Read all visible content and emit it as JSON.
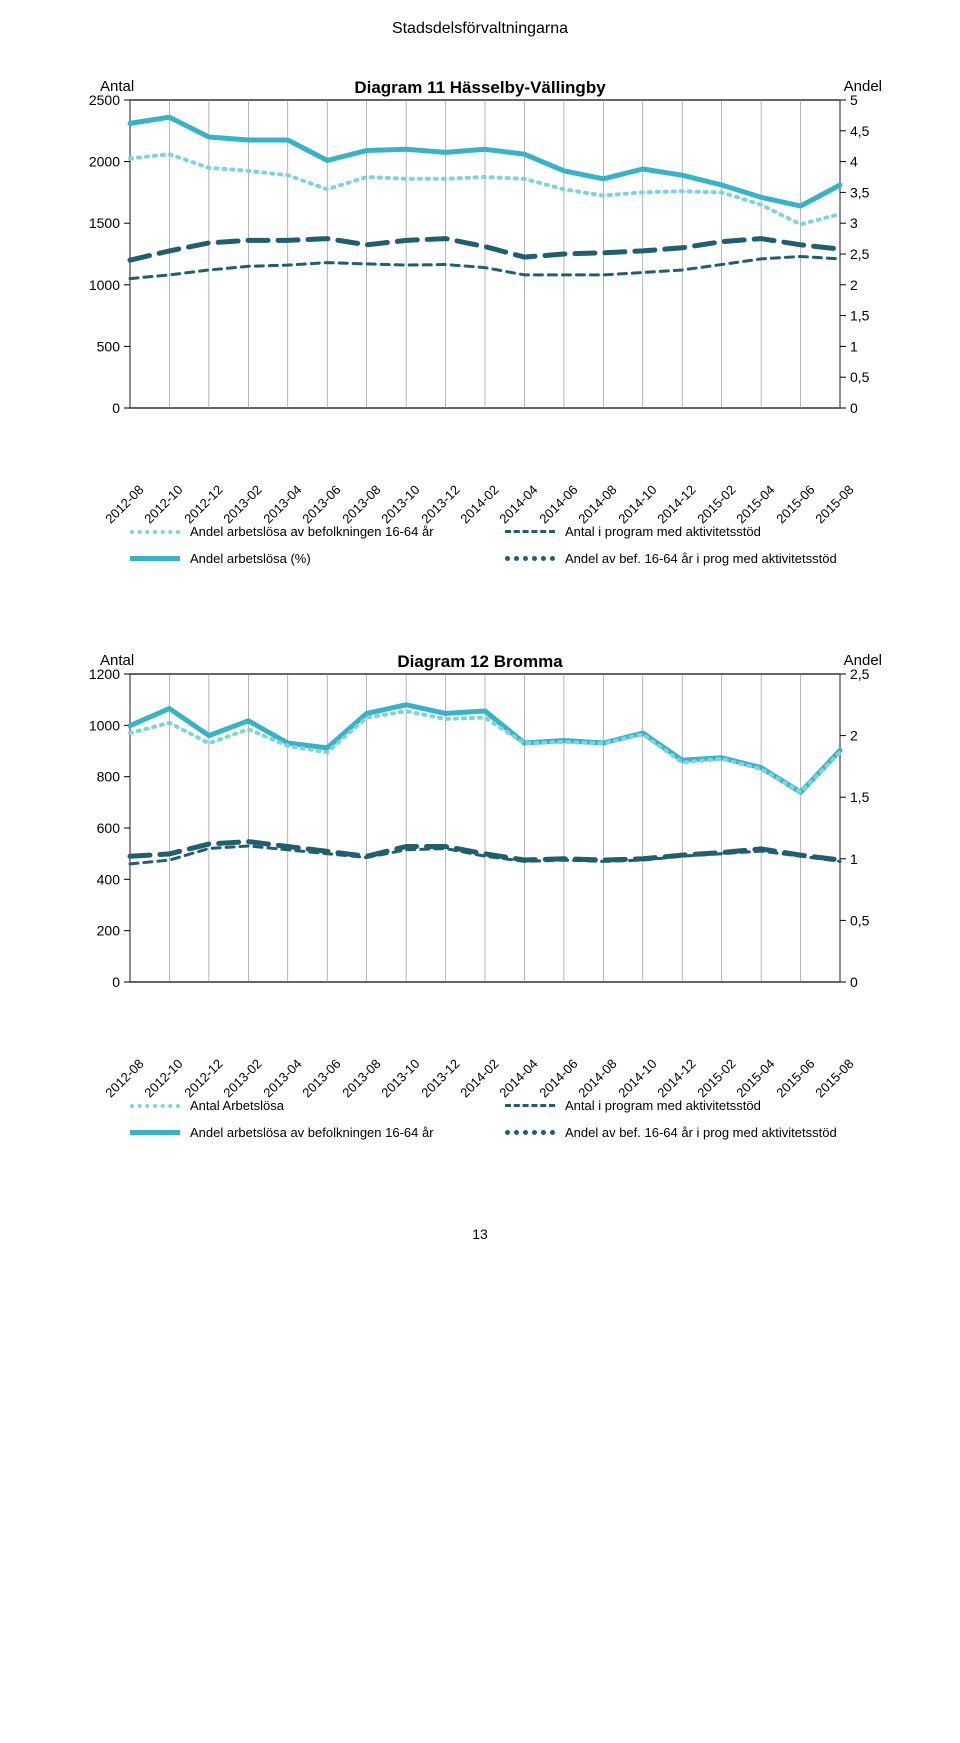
{
  "page_header": "Stadsdelsförvaltningarna",
  "page_number": "13",
  "colors": {
    "light": "#7dd3e0",
    "main": "#35b4c9",
    "dark": "#1f5f6f",
    "grid": "#888888",
    "frame": "#000000"
  },
  "x_categories": [
    "2012-08",
    "2012-10",
    "2012-12",
    "2013-02",
    "2013-04",
    "2013-06",
    "2013-08",
    "2013-10",
    "2013-12",
    "2014-02",
    "2014-04",
    "2014-06",
    "2014-08",
    "2014-10",
    "2014-12",
    "2015-02",
    "2015-04",
    "2015-06",
    "2015-08"
  ],
  "chart1": {
    "title": "Diagram 11 Hässelby-Vällingby",
    "left_label": "Antal",
    "right_label": "Andel",
    "y_left": {
      "min": 0,
      "max": 2500,
      "ticks": [
        0,
        500,
        1000,
        1500,
        2000,
        2500
      ]
    },
    "y_right": {
      "min": 0,
      "max": 5,
      "ticks": [
        0,
        "0,5",
        1,
        "1,5",
        2,
        "2,5",
        3,
        "3,5",
        4,
        "4,5",
        5
      ]
    },
    "series": {
      "light_dotted": {
        "label": "Andel arbetslösa av befolkningen 16-64 år",
        "axis": "right",
        "color": "light",
        "dash": "2 6",
        "width": 4,
        "values": [
          4.05,
          4.12,
          3.9,
          3.85,
          3.78,
          3.55,
          3.75,
          3.72,
          3.72,
          3.75,
          3.72,
          3.55,
          3.45,
          3.5,
          3.52,
          3.5,
          3.3,
          2.98,
          3.15
        ]
      },
      "main_solid": {
        "label": "Andel arbetslösa (%)",
        "axis": "right",
        "color": "main",
        "dash": "",
        "width": 5,
        "values": [
          4.62,
          4.72,
          4.4,
          4.35,
          4.35,
          4.02,
          4.18,
          4.2,
          4.15,
          4.2,
          4.12,
          3.85,
          3.72,
          3.88,
          3.78,
          3.62,
          3.42,
          3.28,
          3.62
        ]
      },
      "dark_dashed_thin": {
        "label": "Antal i program med aktivitetsstöd",
        "axis": "left",
        "color": "dark",
        "dash": "8 6",
        "width": 3,
        "values": [
          1050,
          1080,
          1120,
          1150,
          1160,
          1180,
          1170,
          1160,
          1165,
          1140,
          1080,
          1080,
          1080,
          1100,
          1120,
          1165,
          1210,
          1230,
          1210
        ]
      },
      "dark_dashed_thick": {
        "label": "Andel av bef. 16-64 år i prog med aktivitetsstöd",
        "axis": "right",
        "color": "dark",
        "dash": "20 10",
        "width": 5,
        "values": [
          2.4,
          2.55,
          2.68,
          2.72,
          2.72,
          2.75,
          2.65,
          2.72,
          2.75,
          2.62,
          2.45,
          2.5,
          2.52,
          2.55,
          2.6,
          2.7,
          2.75,
          2.65,
          2.58
        ]
      }
    },
    "legend": [
      [
        "light_dotted",
        "dark_dashed_thin"
      ],
      [
        "main_solid",
        "dark_dashed_thick"
      ]
    ]
  },
  "chart2": {
    "title": "Diagram 12 Bromma",
    "left_label": "Antal",
    "right_label": "Andel",
    "y_left": {
      "min": 0,
      "max": 1200,
      "ticks": [
        0,
        200,
        400,
        600,
        800,
        1000,
        1200
      ]
    },
    "y_right": {
      "min": 0,
      "max": 2.5,
      "ticks": [
        0,
        "0,5",
        1,
        "1,5",
        2,
        "2,5"
      ]
    },
    "series": {
      "light_dotted": {
        "label": "Antal Arbetslösa",
        "axis": "left",
        "color": "light",
        "dash": "2 6",
        "width": 4,
        "values": [
          970,
          1010,
          930,
          985,
          920,
          895,
          1030,
          1055,
          1025,
          1030,
          930,
          935,
          930,
          965,
          855,
          870,
          830,
          740,
          895
        ]
      },
      "main_solid": {
        "label": "Andel arbetslösa av befolkningen 16-64 år",
        "axis": "right",
        "color": "main",
        "dash": "",
        "width": 5,
        "values": [
          2.08,
          2.22,
          2.0,
          2.12,
          1.94,
          1.9,
          2.18,
          2.25,
          2.18,
          2.2,
          1.94,
          1.96,
          1.94,
          2.02,
          1.8,
          1.82,
          1.74,
          1.54,
          1.88
        ]
      },
      "dark_dashed_thin": {
        "label": "Antal i program med aktivitetsstöd",
        "axis": "left",
        "color": "dark",
        "dash": "8 6",
        "width": 3,
        "values": [
          460,
          475,
          520,
          530,
          515,
          500,
          485,
          515,
          520,
          490,
          470,
          475,
          470,
          475,
          490,
          500,
          510,
          490,
          470
        ]
      },
      "dark_dashed_thick": {
        "label": "Andel av bef. 16-64 år i prog med aktivitetsstöd",
        "axis": "right",
        "color": "dark",
        "dash": "20 10",
        "width": 5,
        "values": [
          1.02,
          1.04,
          1.12,
          1.14,
          1.1,
          1.06,
          1.02,
          1.1,
          1.1,
          1.04,
          0.99,
          1.0,
          0.99,
          1.0,
          1.03,
          1.05,
          1.08,
          1.03,
          0.99
        ]
      }
    },
    "legend": [
      [
        "light_dotted",
        "dark_dashed_thin"
      ],
      [
        "main_solid",
        "dark_dashed_thick"
      ]
    ]
  }
}
